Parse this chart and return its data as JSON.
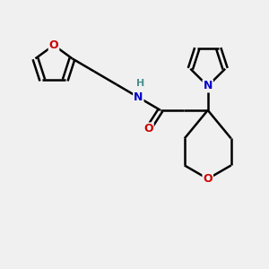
{
  "background_color": "#f0f0f0",
  "atom_colors": {
    "C": "#000000",
    "N": "#0000cc",
    "O": "#cc0000",
    "H": "#4a9090"
  },
  "bond_color": "#000000",
  "line_width": 1.8,
  "figsize": [
    3.0,
    3.0
  ],
  "dpi": 100,
  "xlim": [
    0,
    10
  ],
  "ylim": [
    0,
    10
  ]
}
